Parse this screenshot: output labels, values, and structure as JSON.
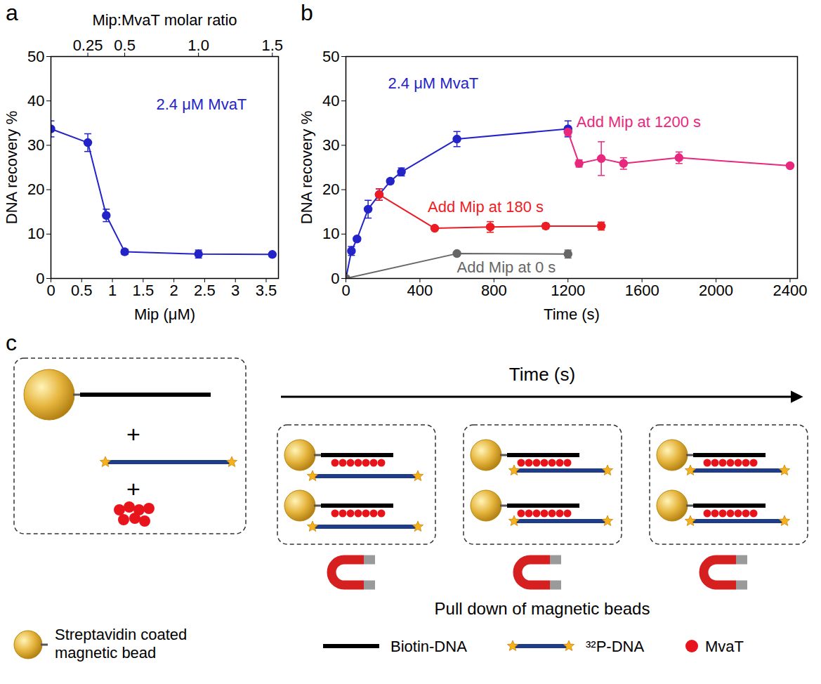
{
  "chart_data": [
    {
      "panel": "a",
      "type": "line",
      "x_label": "Mip (μM)",
      "y_label": "DNA recovery %",
      "x2_label": "Mip:MvaT molar ratio",
      "xlim": [
        0,
        3.7
      ],
      "xticks": [
        0,
        0.5,
        1,
        1.5,
        2,
        2.5,
        3,
        3.5
      ],
      "x2ticks": [
        {
          "value": 0.6,
          "label": "0.25"
        },
        {
          "value": 1.2,
          "label": "0.5"
        },
        {
          "value": 2.4,
          "label": "1.0"
        },
        {
          "value": 3.6,
          "label": "1.5"
        }
      ],
      "ylim": [
        0,
        50
      ],
      "yticks": [
        0,
        10,
        20,
        30,
        40,
        50
      ],
      "series": [
        {
          "name": "2.4 μM MvaT",
          "color": "#2323c8",
          "marker": "circle",
          "x": [
            0,
            0.6,
            0.9,
            1.2,
            2.4,
            3.6
          ],
          "values": [
            33.7,
            30.6,
            14.2,
            6.0,
            5.5,
            5.4
          ],
          "errors": [
            1.8,
            2.0,
            1.4,
            0.6,
            0.9,
            0.3
          ]
        }
      ]
    },
    {
      "panel": "b",
      "type": "line",
      "x_label": "Time (s)",
      "y_label": "DNA recovery %",
      "xlim": [
        0,
        2440
      ],
      "xticks": [
        0,
        400,
        800,
        1200,
        1600,
        2000,
        2400
      ],
      "ylim": [
        0,
        50
      ],
      "yticks": [
        0,
        10,
        20,
        30,
        40,
        50
      ],
      "series": [
        {
          "name": "2.4 μM MvaT",
          "color": "#2323c8",
          "marker": "circle",
          "x": [
            0,
            30,
            60,
            120,
            180,
            240,
            300,
            600,
            1200
          ],
          "values": [
            0,
            6.2,
            8.9,
            15.6,
            18.9,
            21.9,
            24.0,
            31.4,
            33.7
          ],
          "errors": [
            0,
            1.0,
            0.4,
            2.0,
            1.3,
            0.5,
            0.9,
            1.7,
            1.8
          ]
        },
        {
          "name": "Add Mip at 180 s",
          "color": "#ed1c24",
          "marker": "circle",
          "x": [
            180,
            480,
            780,
            1080,
            1380
          ],
          "values": [
            18.9,
            11.3,
            11.6,
            11.8,
            11.8
          ],
          "errors": [
            1.3,
            0.3,
            1.2,
            0.6,
            0.9
          ]
        },
        {
          "name": "Add Mip at 1200 s",
          "color": "#e8287c",
          "marker": "circle",
          "x": [
            1200,
            1260,
            1380,
            1500,
            1800,
            2400
          ],
          "values": [
            33.0,
            25.9,
            27.0,
            25.9,
            27.2,
            25.4
          ],
          "errors": [
            0.8,
            0.8,
            3.8,
            1.3,
            1.3,
            0.5
          ]
        },
        {
          "name": "Add Mip at 0 s",
          "color": "#666666",
          "marker": "circle",
          "x": [
            0,
            600,
            1200
          ],
          "values": [
            0,
            5.6,
            5.5
          ],
          "errors": [
            0,
            0.3,
            0.9
          ]
        }
      ]
    }
  ],
  "diagram": {
    "panel": "c",
    "time_label": "Time (s)",
    "plus": "+",
    "caption": "Pull down of magnetic beads",
    "key": [
      "Streptavidin coated magnetic bead",
      "Biotin-DNA",
      "³²P-DNA",
      "MvaT"
    ]
  }
}
